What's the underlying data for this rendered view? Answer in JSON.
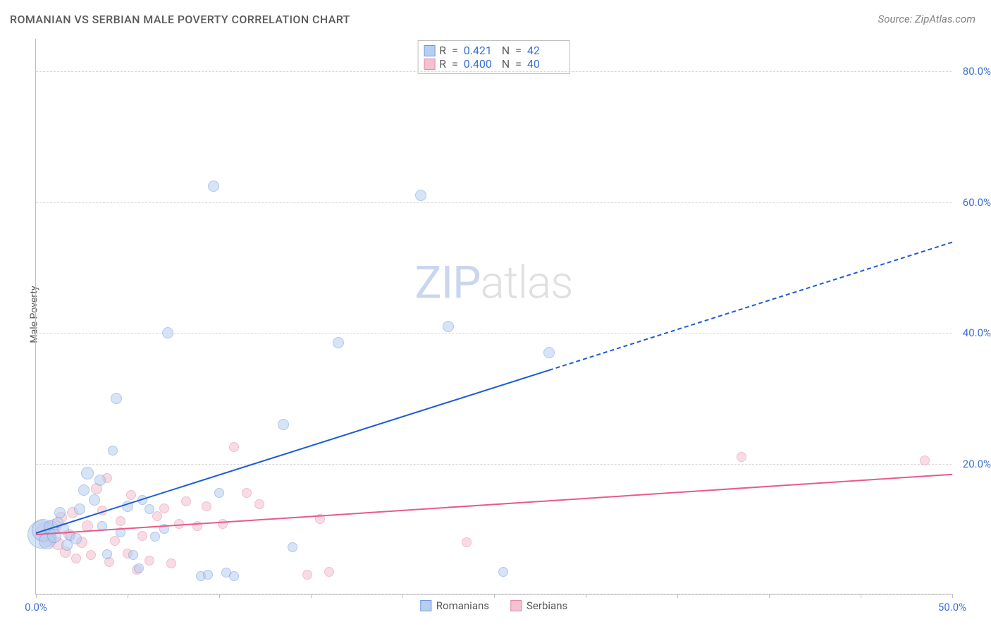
{
  "title": "ROMANIAN VS SERBIAN MALE POVERTY CORRELATION CHART",
  "source_label": "Source: ZipAtlas.com",
  "y_axis_label": "Male Poverty",
  "watermark_a": "ZIP",
  "watermark_b": "atlas",
  "chart": {
    "type": "scatter",
    "xlim": [
      0,
      50
    ],
    "ylim": [
      0,
      85
    ],
    "x_ticks": [
      0,
      5,
      10,
      15,
      20,
      25,
      30,
      35,
      40,
      45,
      50
    ],
    "x_tick_labels": {
      "0": "0.0%",
      "50": "50.0%"
    },
    "y_gridlines": [
      0,
      20,
      40,
      60,
      80
    ],
    "y_tick_labels": {
      "20": "20.0%",
      "40": "40.0%",
      "60": "60.0%",
      "80": "80.0%"
    },
    "background_color": "#ffffff",
    "grid_color": "#d8d8d8",
    "axis_color": "#bfbfbf",
    "tick_label_color": "#3b6fd6",
    "series": {
      "romanians": {
        "label": "Romanians",
        "fill": "#b7cef0",
        "stroke": "#6d9ae0",
        "fill_opacity": 0.55,
        "trend_color": "#1c5bd8",
        "trend_width": 2,
        "trend_solid_end_x": 28,
        "trend": {
          "x1": 0,
          "y1": 9.5,
          "x2": 50,
          "y2": 54
        },
        "r_value": "0.421",
        "n_value": "42",
        "points": [
          {
            "x": 0.3,
            "y": 9.2,
            "r": 20
          },
          {
            "x": 0.4,
            "y": 9.8,
            "r": 16
          },
          {
            "x": 0.6,
            "y": 8.2,
            "r": 12
          },
          {
            "x": 0.8,
            "y": 10.2,
            "r": 10
          },
          {
            "x": 1.0,
            "y": 9.0,
            "r": 10
          },
          {
            "x": 1.2,
            "y": 11,
            "r": 8
          },
          {
            "x": 1.3,
            "y": 12.5,
            "r": 8
          },
          {
            "x": 1.5,
            "y": 10,
            "r": 8
          },
          {
            "x": 1.7,
            "y": 7.5,
            "r": 8
          },
          {
            "x": 1.9,
            "y": 9.0,
            "r": 7
          },
          {
            "x": 2.2,
            "y": 8.5,
            "r": 8
          },
          {
            "x": 2.4,
            "y": 13,
            "r": 8
          },
          {
            "x": 2.6,
            "y": 16,
            "r": 8
          },
          {
            "x": 2.8,
            "y": 18.5,
            "r": 9
          },
          {
            "x": 3.2,
            "y": 14.5,
            "r": 8
          },
          {
            "x": 3.5,
            "y": 17.5,
            "r": 8
          },
          {
            "x": 3.6,
            "y": 10.5,
            "r": 7
          },
          {
            "x": 3.9,
            "y": 6.2,
            "r": 7
          },
          {
            "x": 4.2,
            "y": 22,
            "r": 7
          },
          {
            "x": 4.4,
            "y": 30,
            "r": 8
          },
          {
            "x": 4.6,
            "y": 9.5,
            "r": 7
          },
          {
            "x": 5.0,
            "y": 13.5,
            "r": 8
          },
          {
            "x": 5.3,
            "y": 6.0,
            "r": 7
          },
          {
            "x": 5.6,
            "y": 4.0,
            "r": 7
          },
          {
            "x": 5.8,
            "y": 14.5,
            "r": 7
          },
          {
            "x": 6.2,
            "y": 13,
            "r": 7
          },
          {
            "x": 6.5,
            "y": 8.8,
            "r": 7
          },
          {
            "x": 7.0,
            "y": 10,
            "r": 7
          },
          {
            "x": 7.2,
            "y": 40,
            "r": 8
          },
          {
            "x": 9.0,
            "y": 2.8,
            "r": 7
          },
          {
            "x": 9.4,
            "y": 3.0,
            "r": 7
          },
          {
            "x": 9.7,
            "y": 62.5,
            "r": 8
          },
          {
            "x": 10.0,
            "y": 15.5,
            "r": 7
          },
          {
            "x": 10.4,
            "y": 3.3,
            "r": 7
          },
          {
            "x": 10.8,
            "y": 2.8,
            "r": 7
          },
          {
            "x": 13.5,
            "y": 26,
            "r": 8
          },
          {
            "x": 14.0,
            "y": 7.2,
            "r": 7
          },
          {
            "x": 16.5,
            "y": 38.5,
            "r": 8
          },
          {
            "x": 21.0,
            "y": 61,
            "r": 8
          },
          {
            "x": 22.5,
            "y": 41,
            "r": 8
          },
          {
            "x": 25.5,
            "y": 3.5,
            "r": 7
          },
          {
            "x": 28.0,
            "y": 37,
            "r": 8
          }
        ]
      },
      "serbians": {
        "label": "Serbians",
        "fill": "#f4c1cf",
        "stroke": "#e58aa4",
        "fill_opacity": 0.55,
        "trend_color": "#e85b88",
        "trend_width": 2,
        "trend_solid_end_x": 50,
        "trend": {
          "x1": 0,
          "y1": 9.3,
          "x2": 50,
          "y2": 18.5
        },
        "r_value": "0.400",
        "n_value": "40",
        "points": [
          {
            "x": 0.5,
            "y": 9.5,
            "r": 14
          },
          {
            "x": 0.7,
            "y": 8.5,
            "r": 12
          },
          {
            "x": 1.0,
            "y": 10.5,
            "r": 10
          },
          {
            "x": 1.2,
            "y": 7.8,
            "r": 9
          },
          {
            "x": 1.4,
            "y": 11.8,
            "r": 8
          },
          {
            "x": 1.6,
            "y": 6.5,
            "r": 8
          },
          {
            "x": 1.8,
            "y": 9.2,
            "r": 8
          },
          {
            "x": 2.0,
            "y": 12.5,
            "r": 8
          },
          {
            "x": 2.2,
            "y": 5.5,
            "r": 7
          },
          {
            "x": 2.5,
            "y": 8.0,
            "r": 8
          },
          {
            "x": 2.8,
            "y": 10.5,
            "r": 8
          },
          {
            "x": 3.0,
            "y": 6.0,
            "r": 7
          },
          {
            "x": 3.3,
            "y": 16.2,
            "r": 8
          },
          {
            "x": 3.6,
            "y": 12.8,
            "r": 7
          },
          {
            "x": 3.9,
            "y": 17.8,
            "r": 7
          },
          {
            "x": 4.0,
            "y": 5.0,
            "r": 7
          },
          {
            "x": 4.3,
            "y": 8.2,
            "r": 7
          },
          {
            "x": 4.6,
            "y": 11.2,
            "r": 7
          },
          {
            "x": 5.0,
            "y": 6.3,
            "r": 7
          },
          {
            "x": 5.2,
            "y": 15.2,
            "r": 7
          },
          {
            "x": 5.5,
            "y": 3.8,
            "r": 7
          },
          {
            "x": 5.8,
            "y": 9.0,
            "r": 7
          },
          {
            "x": 6.2,
            "y": 5.2,
            "r": 7
          },
          {
            "x": 6.6,
            "y": 12,
            "r": 7
          },
          {
            "x": 7.0,
            "y": 13.2,
            "r": 7
          },
          {
            "x": 7.4,
            "y": 4.7,
            "r": 7
          },
          {
            "x": 7.8,
            "y": 10.8,
            "r": 7
          },
          {
            "x": 8.2,
            "y": 14.2,
            "r": 7
          },
          {
            "x": 8.8,
            "y": 10.5,
            "r": 7
          },
          {
            "x": 9.3,
            "y": 13.5,
            "r": 7
          },
          {
            "x": 10.2,
            "y": 10.8,
            "r": 7
          },
          {
            "x": 10.8,
            "y": 22.5,
            "r": 7
          },
          {
            "x": 11.5,
            "y": 15.5,
            "r": 7
          },
          {
            "x": 12.2,
            "y": 13.8,
            "r": 7
          },
          {
            "x": 14.8,
            "y": 3.0,
            "r": 7
          },
          {
            "x": 15.5,
            "y": 11.5,
            "r": 7
          },
          {
            "x": 16.0,
            "y": 3.4,
            "r": 7
          },
          {
            "x": 23.5,
            "y": 8.0,
            "r": 7
          },
          {
            "x": 38.5,
            "y": 21,
            "r": 7
          },
          {
            "x": 48.5,
            "y": 20.5,
            "r": 7
          }
        ]
      }
    }
  },
  "legend_top_labels": {
    "r": "R",
    "n": "N",
    "eq": "="
  }
}
